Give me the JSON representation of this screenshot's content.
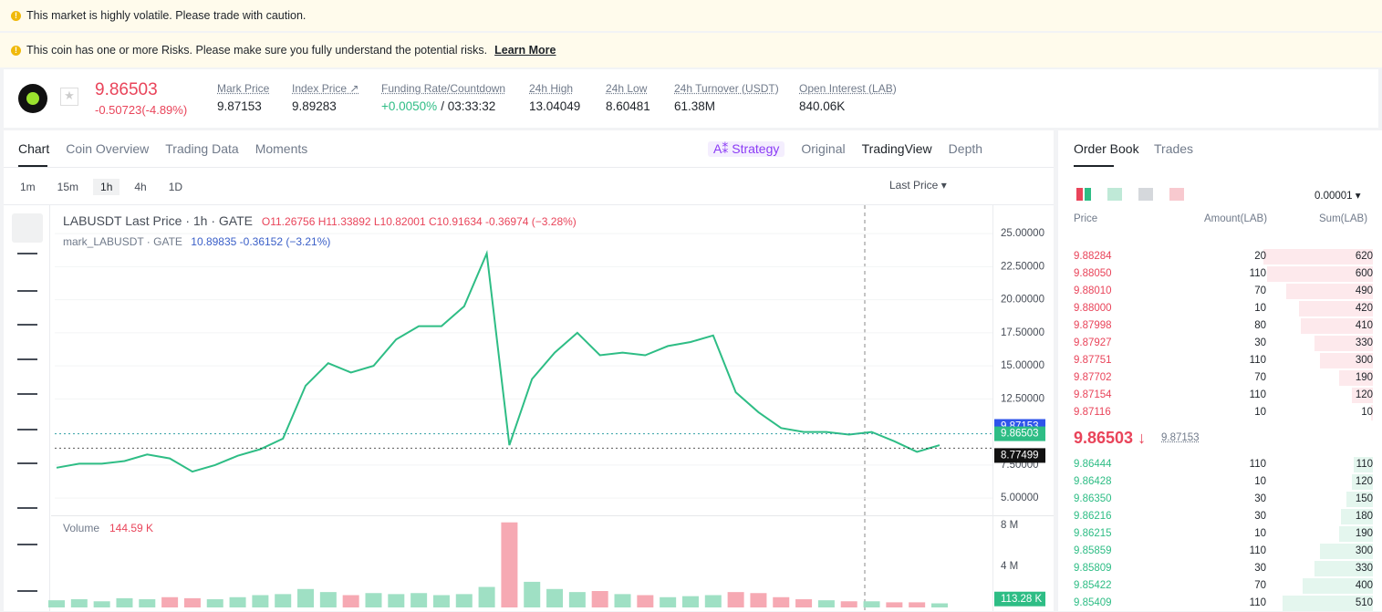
{
  "banners": [
    "This market is highly volatile. Please trade with caution.",
    "This coin has one or more Risks. Please make sure you fully understand the potential risks."
  ],
  "learn_more": "Learn More",
  "ticker": {
    "price": "9.86503",
    "change": "-0.50723(-4.89%)",
    "stats": [
      {
        "label": "Mark Price",
        "value": "9.87153"
      },
      {
        "label": "Index Price ↗",
        "value": "9.89283"
      },
      {
        "label": "Funding Rate/Countdown",
        "value": "+0.0050%",
        "value2": "/ 03:33:32"
      },
      {
        "label": "24h High",
        "value": "13.04049"
      },
      {
        "label": "24h Low",
        "value": "8.60481"
      },
      {
        "label": "24h Turnover (USDT)",
        "value": "61.38M"
      },
      {
        "label": "Open Interest (LAB)",
        "value": "840.06K"
      }
    ]
  },
  "tabs": [
    "Chart",
    "Coin Overview",
    "Trading Data",
    "Moments"
  ],
  "views": [
    "A⁑ Strategy",
    "Original",
    "TradingView",
    "Depth"
  ],
  "intervals": [
    "1m",
    "15m",
    "1h",
    "4h",
    "1D"
  ],
  "price_type": "Last Price",
  "legend": {
    "symbol": "LABUSDT Last Price · 1h · GATE",
    "open": "O11.26756",
    "high": "H11.33892",
    "low": "L10.82001",
    "close": "C10.91634",
    "change": "-0.36974 (−3.28%)",
    "mark_symbol": "mark_LABUSDT · GATE",
    "mark_values": "10.89835 -0.36152 (−3.21%)"
  },
  "chart_data": [
    {
      "type": "line",
      "color": "#2ebd85",
      "ylim": [
        3.7,
        26.8
      ],
      "yticks": [
        {
          "value": 25,
          "label": "25.00000"
        },
        {
          "value": 22.5,
          "label": "22.50000"
        },
        {
          "value": 20,
          "label": "20.00000"
        },
        {
          "value": 17.5,
          "label": "17.50000"
        },
        {
          "value": 15,
          "label": "15.00000"
        },
        {
          "value": 12.5,
          "label": "12.50000"
        },
        {
          "value": 7.5,
          "label": "7.50000"
        },
        {
          "value": 5,
          "label": "5.00000"
        }
      ],
      "values": [
        7.3,
        7.6,
        7.6,
        7.8,
        8.3,
        8.0,
        7.0,
        7.5,
        8.2,
        8.7,
        9.5,
        13.5,
        15.2,
        14.5,
        15.0,
        17.0,
        18.0,
        18.0,
        19.5,
        23.5,
        9.0,
        14.0,
        16.0,
        17.5,
        15.8,
        16.0,
        15.8,
        16.5,
        16.8,
        17.3,
        13.0,
        11.5,
        10.3,
        10.0,
        10.0,
        9.8,
        10.0,
        9.3,
        8.5,
        9.0
      ],
      "price_lines": [
        {
          "value": 9.87153,
          "label": "9.87153",
          "color": "#2f54eb"
        },
        {
          "value": 9.86503,
          "label": "9.86503",
          "color": "#2ebd85"
        },
        {
          "value": 8.77499,
          "label": "8.77499",
          "color": "#111111"
        }
      ],
      "grid": true
    },
    {
      "type": "bar",
      "title": "Volume",
      "subtitle": "144.59 K",
      "up_color": "#9fe0c4",
      "down_color": "#f6a9b3",
      "ylim": [
        0,
        8.9
      ],
      "yticks": [
        {
          "value": 4,
          "label": "4 M"
        },
        {
          "value": 8,
          "label": "8 M"
        }
      ],
      "values": [
        0.7,
        0.8,
        0.6,
        0.9,
        0.8,
        1.0,
        0.9,
        0.8,
        1.0,
        1.2,
        1.3,
        1.8,
        1.5,
        1.2,
        1.4,
        1.3,
        1.4,
        1.2,
        1.3,
        2.0,
        8.3,
        2.5,
        1.8,
        1.5,
        1.6,
        1.3,
        1.2,
        1.0,
        1.1,
        1.2,
        1.5,
        1.4,
        1.0,
        0.8,
        0.7,
        0.6,
        0.6,
        0.5,
        0.5,
        0.4
      ],
      "last": {
        "value": 0.11328,
        "label": "113.28 K"
      }
    }
  ],
  "order_book": {
    "tabs": [
      "Order Book",
      "Trades"
    ],
    "precision": "0.00001",
    "headers": [
      "Price",
      "Amount(LAB)",
      "Sum(LAB)"
    ],
    "asks": [
      [
        "9.88284",
        20,
        620
      ],
      [
        "9.88050",
        110,
        600
      ],
      [
        "9.88010",
        70,
        490
      ],
      [
        "9.88000",
        10,
        420
      ],
      [
        "9.87998",
        80,
        410
      ],
      [
        "9.87927",
        30,
        330
      ],
      [
        "9.87751",
        110,
        300
      ],
      [
        "9.87702",
        70,
        190
      ],
      [
        "9.87154",
        110,
        120
      ],
      [
        "9.87116",
        10,
        10
      ]
    ],
    "last": "9.86503",
    "mark": "9.87153",
    "bids": [
      [
        "9.86444",
        110,
        110
      ],
      [
        "9.86428",
        10,
        120
      ],
      [
        "9.86350",
        30,
        150
      ],
      [
        "9.86216",
        30,
        180
      ],
      [
        "9.86215",
        10,
        190
      ],
      [
        "9.85859",
        110,
        300
      ],
      [
        "9.85809",
        30,
        330
      ],
      [
        "9.85422",
        70,
        400
      ],
      [
        "9.85409",
        110,
        510
      ]
    ]
  }
}
